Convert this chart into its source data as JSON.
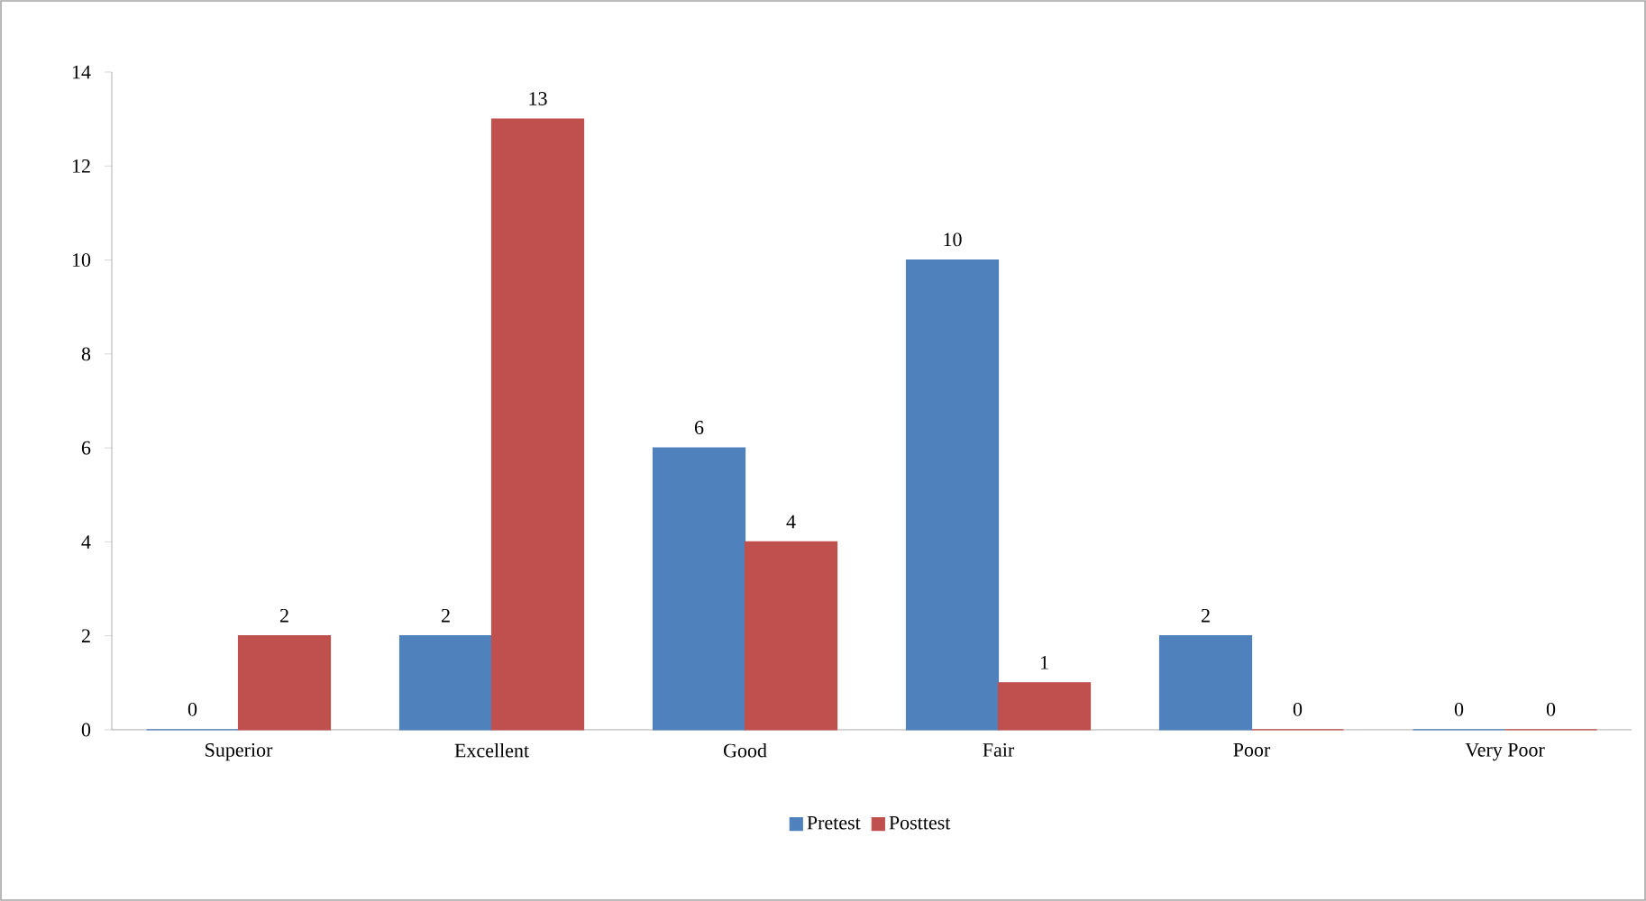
{
  "chart_data": {
    "type": "bar",
    "categories": [
      "Superior",
      "Excellent",
      "Good",
      "Fair",
      "Poor",
      "Very Poor"
    ],
    "series": [
      {
        "name": "Pretest",
        "color": "#4f81bd",
        "values": [
          0,
          2,
          6,
          10,
          2,
          0
        ]
      },
      {
        "name": "Posttest",
        "color": "#c0504d",
        "values": [
          2,
          13,
          4,
          1,
          0,
          0
        ]
      }
    ],
    "ylim": [
      0,
      14
    ],
    "yticks": [
      0,
      2,
      4,
      6,
      8,
      10,
      12,
      14
    ],
    "data_labels": true,
    "grid": false,
    "legend": "bottom"
  }
}
